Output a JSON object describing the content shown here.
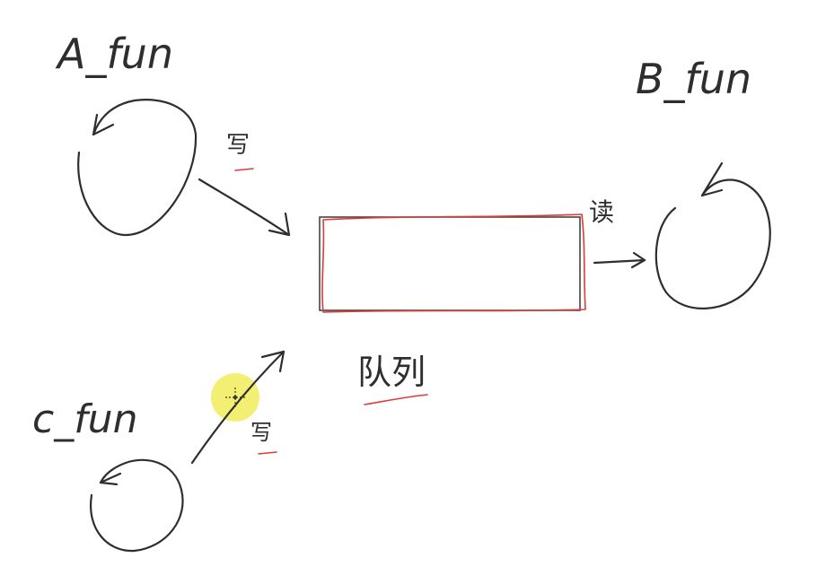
{
  "labels": {
    "a_fun": "A_fun",
    "b_fun": "B_fun",
    "c_fun": "c_fun",
    "write_top": "写",
    "write_bottom": "写",
    "read": "读",
    "queue": "队列"
  },
  "colors": {
    "ink": "#2e2e2e",
    "highlight_red": "#e03a3a",
    "cursor_highlight": "#f2ee6c"
  },
  "icons": {
    "cursor": "crosshair-cursor-icon"
  }
}
